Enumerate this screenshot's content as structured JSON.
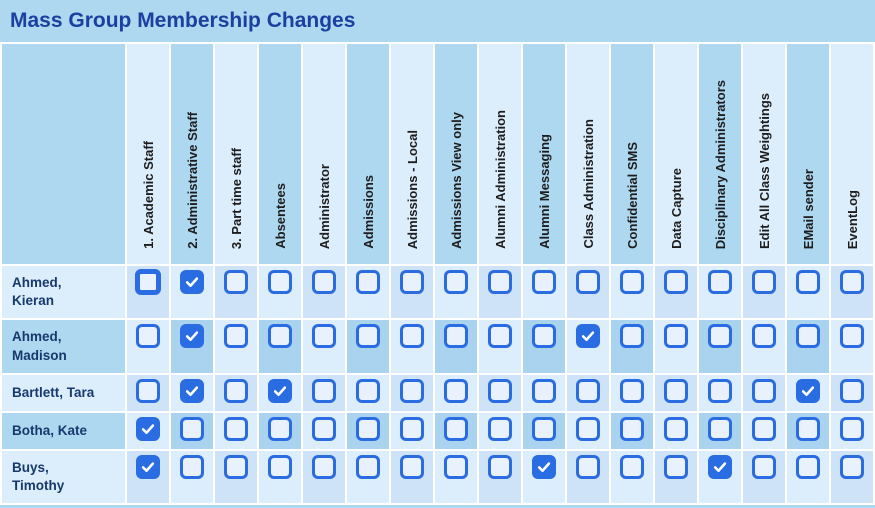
{
  "title": "Mass Group Membership Changes",
  "colors": {
    "page_bg": "#aed7f0",
    "stripe_light": "#dcedfc",
    "stripe_shaded": "#cfe3f8",
    "stripe_medium": "#a9d3ee",
    "checkbox_blue": "#2a6ce2",
    "title_text": "#1a41a0",
    "member_name_text": "#17396b",
    "group_header_text": "#1d1d1d"
  },
  "table": {
    "groups": [
      "1. Academic Staff",
      "2. Administrative Staff",
      "3. Part time staff",
      "Absentees",
      "Administrator",
      "Admissions",
      "Admissions - Local",
      "Admissions View only",
      "Alumni Administration",
      "Alumni Messaging",
      "Class Administration",
      "Confidential SMS",
      "Data Capture",
      "Disciplinary Administrators",
      "Edit All Class Weightings",
      "EMail sender",
      "EventLog"
    ],
    "members": [
      {
        "name": "Ahmed,\nKieran",
        "checked": [
          1
        ],
        "focused_group": 0
      },
      {
        "name": "Ahmed,\nMadison",
        "checked": [
          1,
          10
        ]
      },
      {
        "name": "Bartlett, Tara",
        "checked": [
          1,
          3,
          15
        ]
      },
      {
        "name": "Botha, Kate",
        "checked": [
          0
        ]
      },
      {
        "name": "Buys,\nTimothy",
        "checked": [
          0,
          9,
          13
        ]
      }
    ]
  }
}
